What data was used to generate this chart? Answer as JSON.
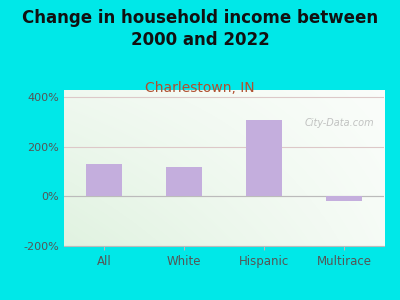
{
  "title": "Change in household income between\n2000 and 2022",
  "subtitle": "Charlestown, IN",
  "categories": [
    "All",
    "White",
    "Hispanic",
    "Multirace"
  ],
  "values": [
    130,
    118,
    310,
    -20
  ],
  "bar_color": "#c4aedd",
  "background_color": "#00e8e8",
  "title_fontsize": 12,
  "subtitle_fontsize": 10,
  "subtitle_color": "#b05030",
  "ylim": [
    -200,
    430
  ],
  "yticks": [
    -200,
    0,
    200,
    400
  ],
  "ytick_labels": [
    "-200%",
    "0%",
    "200%",
    "400%"
  ],
  "grid_color": "#ddc8c8",
  "watermark": "City-Data.com"
}
